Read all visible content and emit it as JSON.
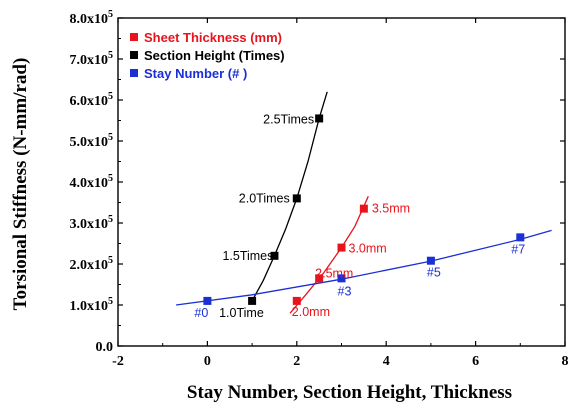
{
  "chart_data": {
    "type": "scatter",
    "xlabel": "Stay Number, Section Height, Thickness",
    "ylabel": "Torsional Stiffness (N-mm/rad)",
    "xlim": [
      -2,
      8
    ],
    "ylim": [
      0,
      800000
    ],
    "x_ticks": [
      -2,
      0,
      2,
      4,
      6,
      8
    ],
    "x_tick_labels": [
      "-2",
      "0",
      "2",
      "4",
      "6",
      "8"
    ],
    "y_ticks": [
      0,
      100000,
      200000,
      300000,
      400000,
      500000,
      600000,
      700000,
      800000
    ],
    "y_tick_labels": [
      {
        "mant": "0.0",
        "exp": ""
      },
      {
        "mant": "1.0x10",
        "exp": "5"
      },
      {
        "mant": "2.0x10",
        "exp": "5"
      },
      {
        "mant": "3.0x10",
        "exp": "5"
      },
      {
        "mant": "4.0x10",
        "exp": "5"
      },
      {
        "mant": "5.0x10",
        "exp": "5"
      },
      {
        "mant": "6.0x10",
        "exp": "5"
      },
      {
        "mant": "7.0x10",
        "exp": "5"
      },
      {
        "mant": "8.0x10",
        "exp": "5"
      }
    ],
    "legend_position": "top-left",
    "series": [
      {
        "name": "Sheet Thickness (mm)",
        "color": "#e8141c",
        "points": [
          {
            "x": 2.0,
            "y": 110000,
            "label": "2.0mm"
          },
          {
            "x": 2.5,
            "y": 165000,
            "label": "2.5mm"
          },
          {
            "x": 3.0,
            "y": 240000,
            "label": "3.0mm"
          },
          {
            "x": 3.5,
            "y": 335000,
            "label": "3.5mm"
          }
        ],
        "fit_curve": [
          [
            1.85,
            80000
          ],
          [
            2.2,
            125000
          ],
          [
            2.6,
            178000
          ],
          [
            3.0,
            240000
          ],
          [
            3.3,
            292000
          ],
          [
            3.6,
            365000
          ]
        ]
      },
      {
        "name": "Section Height (Times)",
        "color": "#000000",
        "points": [
          {
            "x": 1.0,
            "y": 110000,
            "label": "1.0Time"
          },
          {
            "x": 1.5,
            "y": 220000,
            "label": "1.5Times"
          },
          {
            "x": 2.0,
            "y": 360000,
            "label": "2.0Times"
          },
          {
            "x": 2.5,
            "y": 555000,
            "label": "2.5Times"
          }
        ],
        "fit_curve": [
          [
            1.0,
            110000
          ],
          [
            1.25,
            160000
          ],
          [
            1.5,
            220000
          ],
          [
            1.75,
            285000
          ],
          [
            2.0,
            360000
          ],
          [
            2.25,
            450000
          ],
          [
            2.5,
            555000
          ],
          [
            2.68,
            620000
          ]
        ]
      },
      {
        "name": "Stay Number (# )",
        "color": "#1a2fd6",
        "points": [
          {
            "x": 0,
            "y": 110000,
            "label": "#0"
          },
          {
            "x": 3,
            "y": 165000,
            "label": "#3"
          },
          {
            "x": 5,
            "y": 208000,
            "label": "#5"
          },
          {
            "x": 7,
            "y": 265000,
            "label": "#7"
          }
        ],
        "fit_curve": [
          [
            -0.7,
            100000
          ],
          [
            1.0,
            125000
          ],
          [
            3.0,
            163000
          ],
          [
            5.0,
            207000
          ],
          [
            7.0,
            260000
          ],
          [
            7.7,
            282000
          ]
        ]
      }
    ]
  }
}
